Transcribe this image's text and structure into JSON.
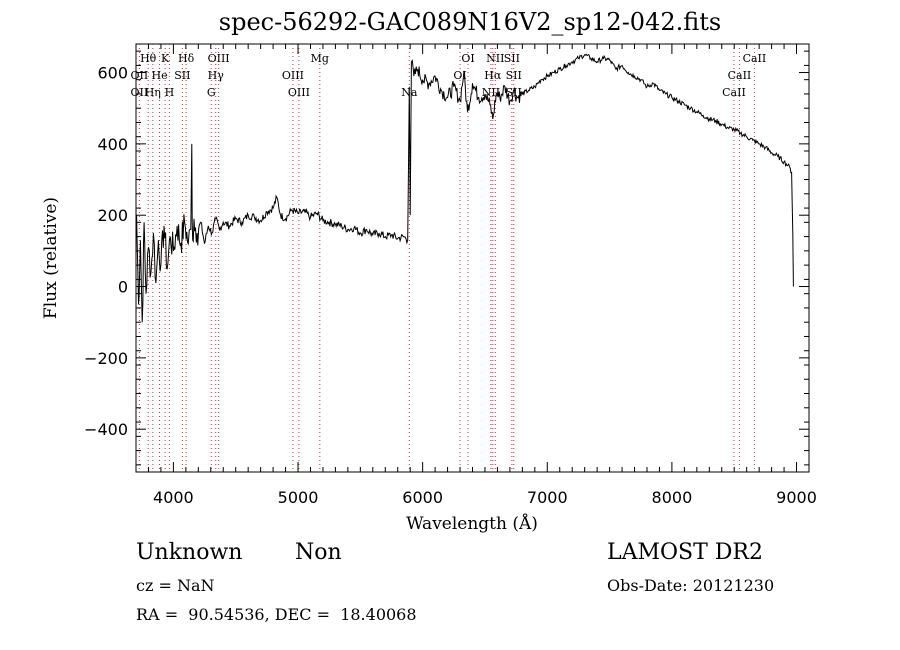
{
  "chart_data": {
    "type": "line",
    "title": "spec-56292-GAC089N16V2_sp12-042.fits",
    "xlabel": "Wavelength (Å)",
    "ylabel": "Flux (relative)",
    "xlim": [
      3700,
      9100
    ],
    "ylim": [
      -520,
      680
    ],
    "x_ticks": [
      4000,
      5000,
      6000,
      7000,
      8000,
      9000
    ],
    "y_ticks": [
      -400,
      -200,
      0,
      200,
      400,
      600
    ],
    "grid": false,
    "line_color": "#000000",
    "marker_line_color": "#cc3333",
    "series": [
      {
        "x": [
          3705,
          3720,
          3735,
          3750,
          3765,
          3780,
          3800,
          3820,
          3840,
          3860,
          3880,
          3900,
          3925,
          3950,
          3975,
          4000,
          4030,
          4060,
          4090,
          4120,
          4140,
          4148,
          4151,
          4155,
          4165,
          4190,
          4220,
          4250,
          4280,
          4310,
          4340,
          4370,
          4400,
          4450,
          4500,
          4550,
          4600,
          4650,
          4700,
          4750,
          4800,
          4830,
          4860,
          4900,
          4950,
          5000,
          5050,
          5100,
          5150,
          5200,
          5250,
          5300,
          5350,
          5400,
          5450,
          5500,
          5550,
          5600,
          5650,
          5700,
          5750,
          5800,
          5850,
          5880,
          5893,
          5900,
          5910,
          5930,
          5960,
          6000,
          6050,
          6100,
          6150,
          6200,
          6250,
          6300,
          6330,
          6360,
          6400,
          6450,
          6500,
          6540,
          6563,
          6590,
          6620,
          6660,
          6700,
          6730,
          6760,
          6800,
          6850,
          6900,
          6950,
          7000,
          7050,
          7100,
          7150,
          7200,
          7250,
          7300,
          7350,
          7400,
          7450,
          7500,
          7550,
          7600,
          7650,
          7700,
          7750,
          7800,
          7850,
          7900,
          7950,
          8000,
          8050,
          8100,
          8150,
          8200,
          8250,
          8300,
          8350,
          8400,
          8450,
          8500,
          8550,
          8600,
          8650,
          8700,
          8750,
          8800,
          8850,
          8900,
          8930,
          8950,
          8960,
          8970,
          8975
        ],
        "y": [
          200,
          -50,
          130,
          -100,
          180,
          -20,
          110,
          40,
          150,
          10,
          130,
          60,
          170,
          50,
          140,
          100,
          170,
          120,
          180,
          120,
          160,
          400,
          180,
          130,
          190,
          150,
          180,
          120,
          170,
          150,
          190,
          160,
          180,
          170,
          190,
          180,
          200,
          195,
          185,
          210,
          220,
          250,
          200,
          190,
          215,
          205,
          210,
          195,
          205,
          185,
          180,
          175,
          170,
          160,
          165,
          150,
          160,
          145,
          150,
          140,
          145,
          135,
          140,
          130,
          560,
          200,
          630,
          590,
          610,
          580,
          570,
          590,
          550,
          530,
          560,
          520,
          600,
          490,
          570,
          530,
          540,
          510,
          470,
          540,
          530,
          560,
          520,
          550,
          530,
          540,
          550,
          560,
          580,
          590,
          600,
          610,
          620,
          630,
          640,
          650,
          640,
          630,
          640,
          635,
          610,
          620,
          600,
          590,
          580,
          560,
          570,
          550,
          540,
          530,
          520,
          510,
          500,
          490,
          480,
          470,
          465,
          455,
          445,
          440,
          430,
          420,
          410,
          400,
          390,
          375,
          365,
          350,
          340,
          330,
          320,
          150,
          0
        ]
      }
    ],
    "lines": [
      {
        "label": "Hθ",
        "wave": 3798,
        "row": 0
      },
      {
        "label": "K",
        "wave": 3934,
        "row": 0
      },
      {
        "label": "Hδ",
        "wave": 4102,
        "row": 0
      },
      {
        "label": "OIII",
        "wave": 4363,
        "row": 0
      },
      {
        "label": "Mg",
        "wave": 5175,
        "row": 0
      },
      {
        "label": "OI",
        "wave": 6364,
        "row": 0
      },
      {
        "label": "NII",
        "wave": 6583,
        "row": 0
      },
      {
        "label": "SII",
        "wave": 6716,
        "row": 0
      },
      {
        "label": "CaII",
        "wave": 8662,
        "row": 0
      },
      {
        "label": "OII",
        "wave": 3727,
        "row": 1
      },
      {
        "label": "He",
        "wave": 3889,
        "row": 1
      },
      {
        "label": "SII",
        "wave": 4072,
        "row": 1
      },
      {
        "label": "Hγ",
        "wave": 4340,
        "row": 1
      },
      {
        "label": "OIII",
        "wave": 4959,
        "row": 1
      },
      {
        "label": "OI",
        "wave": 6300,
        "row": 1
      },
      {
        "label": "Hα",
        "wave": 6563,
        "row": 1
      },
      {
        "label": "SII",
        "wave": 6731,
        "row": 1
      },
      {
        "label": "CaII",
        "wave": 8542,
        "row": 1
      },
      {
        "label": "OII",
        "wave": 3727,
        "row": 2
      },
      {
        "label": "Hη",
        "wave": 3835,
        "row": 2
      },
      {
        "label": "H",
        "wave": 3968,
        "row": 2
      },
      {
        "label": "G",
        "wave": 4304,
        "row": 2
      },
      {
        "label": "OIII",
        "wave": 5007,
        "row": 2
      },
      {
        "label": "Na",
        "wave": 5893,
        "row": 2
      },
      {
        "label": "NII",
        "wave": 6548,
        "row": 2
      },
      {
        "label": "SII",
        "wave": 6731,
        "row": 2
      },
      {
        "label": "CaII",
        "wave": 8498,
        "row": 2
      }
    ]
  },
  "info": {
    "classification": "Unknown",
    "subclass": "Non",
    "survey": "LAMOST DR2",
    "redshift": "cz = NaN",
    "obs_date": "Obs-Date: 20121230",
    "coords": "RA =  90.54536, DEC =  18.40068"
  }
}
